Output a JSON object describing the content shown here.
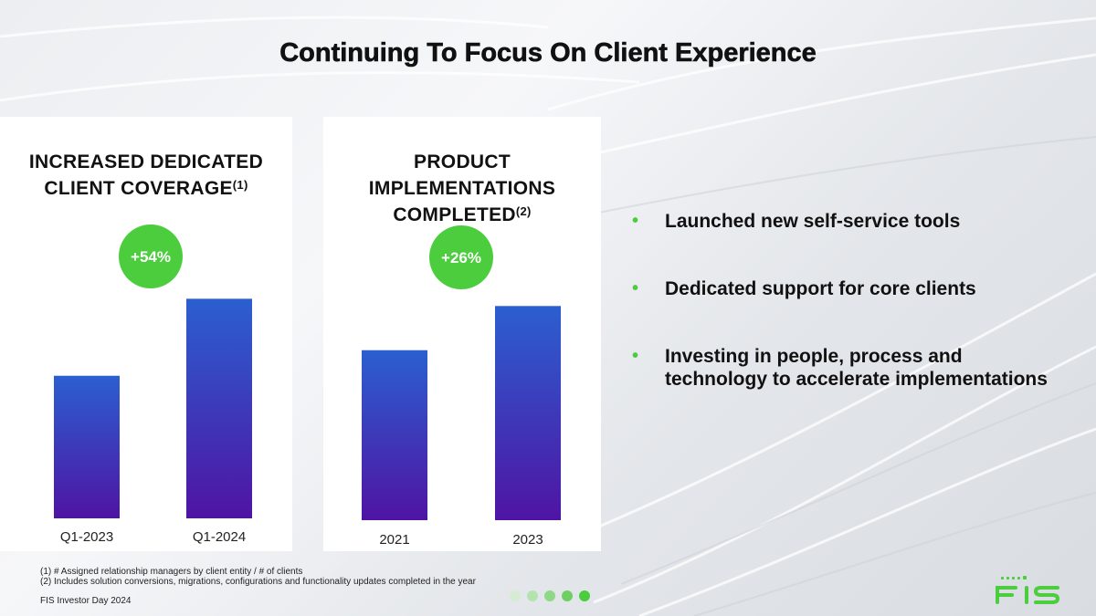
{
  "title": "Continuing To Focus On Client Experience",
  "colors": {
    "bar_top": "#2b5fd0",
    "bar_bottom": "#4f14a3",
    "accent_green": "#4bcd3e",
    "text": "#111111"
  },
  "chart_data": [
    {
      "type": "bar",
      "title_lines": [
        "INCREASED DEDICATED",
        "CLIENT COVERAGE"
      ],
      "title_footnote": "(1)",
      "categories": [
        "Q1-2023",
        "Q1-2024"
      ],
      "values": [
        100,
        154
      ],
      "ylim": [
        0,
        160
      ],
      "change_badge": "+54%",
      "xlabel": "",
      "ylabel": ""
    },
    {
      "type": "bar",
      "title_lines": [
        "PRODUCT",
        "IMPLEMENTATIONS",
        "COMPLETED"
      ],
      "title_footnote": "(2)",
      "categories": [
        "2021",
        "2023"
      ],
      "values": [
        100,
        126
      ],
      "ylim": [
        0,
        131
      ],
      "change_badge": "+26%",
      "xlabel": "",
      "ylabel": ""
    }
  ],
  "bullets": [
    "Launched new self-service tools",
    "Dedicated support for core clients",
    "Investing in people, process and technology to accelerate implementations"
  ],
  "bullet_symbol": "•",
  "footnotes": [
    "(1) # Assigned relationship managers by client entity / # of clients",
    "(2) Includes solution conversions, migrations, configurations and functionality updates completed in the year"
  ],
  "footer": "FIS Investor Day 2024",
  "progress": {
    "total": 5,
    "current": 5
  },
  "logo_text": "FIS",
  "logo_icon": "fis-logo-icon"
}
